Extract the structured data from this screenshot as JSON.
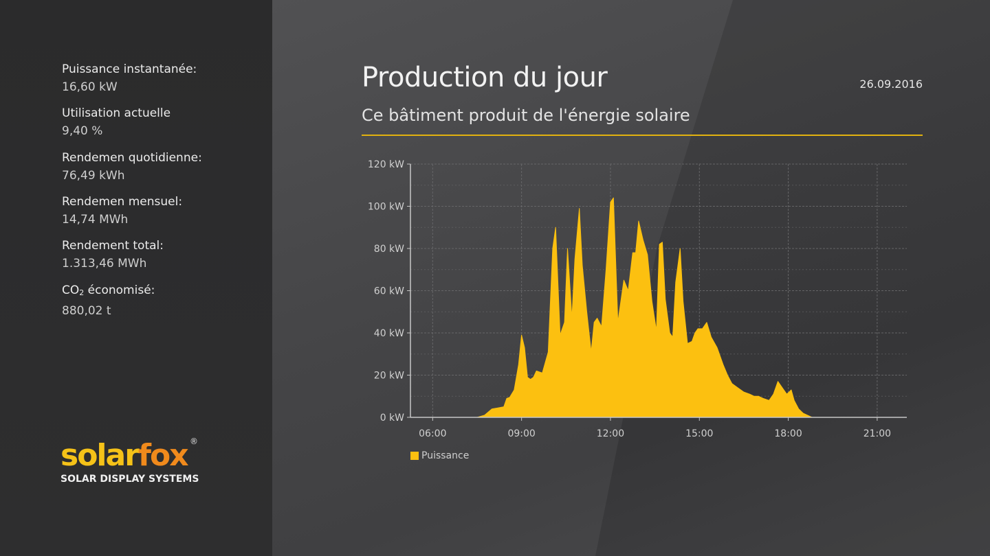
{
  "sidebar": {
    "stats": [
      {
        "label": "Puissance instantanée:",
        "value": "16,60 kW"
      },
      {
        "label": "Utilisation actuelle",
        "value": "9,40 %"
      },
      {
        "label": "Rendemen quotidienne:",
        "value": "76,49 kWh"
      },
      {
        "label": "Rendemen mensuel:",
        "value": "14,74 MWh"
      },
      {
        "label": "Rendement total:",
        "value": "1.313,46 MWh"
      },
      {
        "label_main": "CO",
        "label_sub": "2",
        "label_rest": " économisé:",
        "value": "880,02 t"
      }
    ],
    "logo": {
      "word_part1": "solar",
      "word_part2": "fox",
      "registered": "®",
      "tagline": "SOLAR DISPLAY SYSTEMS"
    }
  },
  "header": {
    "title": "Production du jour",
    "subtitle": "Ce bâtiment produit de l'énergie solaire",
    "date": "26.09.2016"
  },
  "colors": {
    "accent": "#fcc010",
    "divider": "#e2b20f",
    "grid": "#6a6a6c",
    "axis": "#c8c8c8"
  },
  "chart_data": {
    "type": "area",
    "xlabel": "",
    "ylabel": "",
    "x_ticks": [
      "06:00",
      "09:00",
      "12:00",
      "15:00",
      "21:00",
      "18:00"
    ],
    "x_tick_order": [
      "06:00",
      "09:00",
      "12:00",
      "15:00",
      "18:00",
      "21:00"
    ],
    "xlim_hours": [
      5.25,
      22.0
    ],
    "y_ticks": [
      "0 kW",
      "20 kW",
      "40 kW",
      "60 kW",
      "80 kW",
      "100 kW",
      "120 kW"
    ],
    "ylim": [
      0,
      120
    ],
    "grid": true,
    "legend_position": "bottom-left",
    "series": [
      {
        "name": "Puissance",
        "unit": "kW",
        "x_hours": [
          7.5,
          7.75,
          8.0,
          8.2,
          8.4,
          8.5,
          8.6,
          8.75,
          8.9,
          9.0,
          9.1,
          9.2,
          9.3,
          9.4,
          9.5,
          9.7,
          9.9,
          10.05,
          10.15,
          10.3,
          10.45,
          10.55,
          10.7,
          10.8,
          10.95,
          11.05,
          11.2,
          11.35,
          11.45,
          11.55,
          11.7,
          11.85,
          12.0,
          12.1,
          12.25,
          12.45,
          12.6,
          12.75,
          12.85,
          12.95,
          13.1,
          13.25,
          13.4,
          13.55,
          13.65,
          13.75,
          13.85,
          14.0,
          14.1,
          14.2,
          14.35,
          14.45,
          14.6,
          14.75,
          14.85,
          14.95,
          15.1,
          15.25,
          15.4,
          15.6,
          15.8,
          15.95,
          16.1,
          16.3,
          16.5,
          16.7,
          16.85,
          17.0,
          17.15,
          17.35,
          17.5,
          17.65,
          17.8,
          17.95,
          18.1,
          18.2,
          18.35,
          18.5,
          18.65,
          18.8,
          18.9
        ],
        "values": [
          0,
          1,
          4,
          4.5,
          5,
          9,
          9.5,
          13,
          25,
          39,
          33,
          19,
          18,
          19,
          22,
          21,
          31,
          80,
          90,
          39,
          45,
          80,
          47,
          75,
          99,
          72,
          50,
          31,
          45,
          47,
          43,
          70,
          102,
          104,
          45,
          65,
          60,
          78,
          78,
          93,
          84,
          77,
          55,
          41,
          82,
          83,
          56,
          40,
          38,
          64,
          80,
          55,
          35,
          36,
          40,
          42,
          42,
          45,
          38,
          33,
          25,
          20,
          16,
          14,
          12,
          11,
          10,
          10,
          9,
          8,
          11,
          17,
          14,
          11,
          13,
          8,
          4,
          2,
          1,
          0,
          0
        ]
      }
    ]
  }
}
